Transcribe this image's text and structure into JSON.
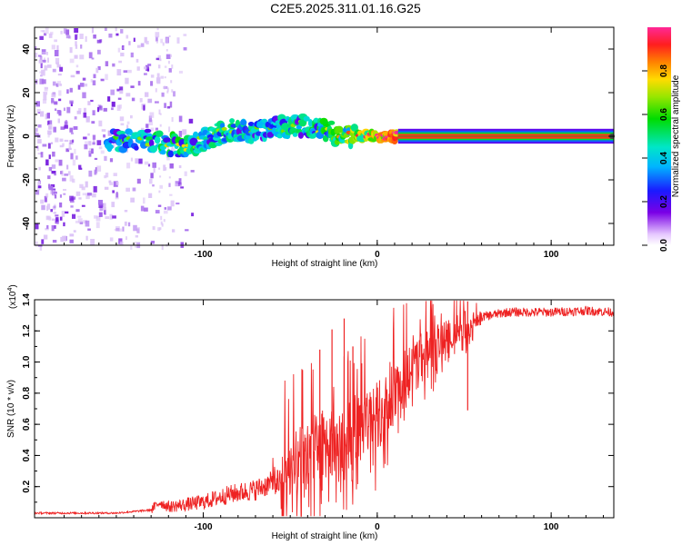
{
  "title": "C2E5.2025.311.01.16.G25",
  "chart_data": [
    {
      "type": "heatmap",
      "xlabel": "Height of straight line (km)",
      "ylabel": "Frequency (Hz)",
      "xlim": [
        -197,
        136
      ],
      "ylim": [
        -50,
        50
      ],
      "xticks": [
        -100,
        0,
        100
      ],
      "yticks": [
        -40,
        -20,
        0,
        20,
        40
      ],
      "colorbar": {
        "label": "Normalized spectral amplitude",
        "range": [
          0,
          1
        ],
        "ticks": [
          0.0,
          0.2,
          0.4,
          0.6,
          0.8
        ],
        "tick_labels": [
          "0.0",
          "0.2",
          "0.4",
          "0.6",
          "0.8"
        ]
      },
      "noise_region_x": [
        -197,
        -107
      ],
      "signal_track": {
        "description": "narrow band near 0 Hz",
        "x": [
          -155,
          -130,
          -110,
          -100,
          -85,
          -70,
          -55,
          -42,
          -30,
          -20,
          -10,
          0,
          12,
          136
        ],
        "center_freq": [
          -2,
          -2,
          -5,
          -2,
          3,
          2,
          4,
          5,
          3,
          0,
          0,
          0,
          0,
          0
        ],
        "amplitude": [
          0.45,
          0.55,
          0.6,
          0.5,
          0.55,
          0.5,
          0.5,
          0.55,
          0.6,
          0.7,
          0.8,
          0.85,
          0.95,
          0.95
        ]
      }
    },
    {
      "type": "line",
      "xlabel": "Height of straight line (km)",
      "ylabel": "SNR (10 * v/v)",
      "scale_label": "(x10",
      "scale_exponent": "4",
      "xlim": [
        -197,
        136
      ],
      "ylim": [
        0,
        1.4
      ],
      "xticks": [
        -100,
        0,
        100
      ],
      "yticks": [
        0.2,
        0.4,
        0.6,
        0.8,
        1.0,
        1.2,
        1.4
      ],
      "ytick_labels": [
        "0.2",
        "0.4",
        "0.6",
        "0.8",
        "1.0",
        "1.2",
        "1.4"
      ],
      "color": "#ee2222",
      "trend": {
        "x": [
          -197,
          -150,
          -130,
          -125,
          -120,
          -100,
          -85,
          -70,
          -55,
          -45,
          -35,
          -25,
          -15,
          -5,
          5,
          15,
          25,
          40,
          55,
          75,
          100,
          120,
          136
        ],
        "y": [
          0.03,
          0.03,
          0.05,
          0.1,
          0.07,
          0.1,
          0.15,
          0.18,
          0.25,
          0.35,
          0.45,
          0.5,
          0.55,
          0.6,
          0.75,
          0.9,
          1.05,
          1.15,
          1.28,
          1.32,
          1.32,
          1.33,
          1.32
        ]
      },
      "notable_peaks": [
        {
          "x": -33,
          "y": 1.08
        },
        {
          "x": -26,
          "y": 1.21
        },
        {
          "x": -19,
          "y": 1.28
        },
        {
          "x": -14,
          "y": 1.1
        },
        {
          "x": 52,
          "y": 1.39
        }
      ]
    }
  ]
}
